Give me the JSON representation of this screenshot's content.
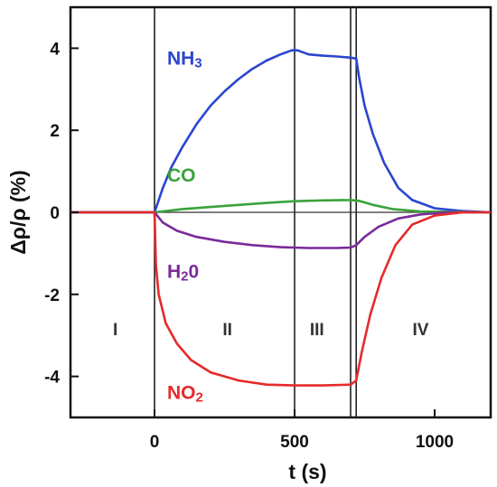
{
  "chart_data": {
    "type": "line",
    "xlabel": "t (s)",
    "ylabel": "Δρ/ρ (%)",
    "xlim": [
      -300,
      1200
    ],
    "ylim": [
      -5,
      5
    ],
    "x_ticks": [
      0,
      500,
      1000
    ],
    "y_ticks": [
      -4,
      -2,
      0,
      2,
      4
    ],
    "grid": false,
    "legend": "inline labels",
    "phase_boundaries": [
      0,
      500,
      700,
      720
    ],
    "regions": [
      {
        "label": "I",
        "x": -140
      },
      {
        "label": "II",
        "x": 260
      },
      {
        "label": "III",
        "x": 580
      },
      {
        "label": "IV",
        "x": 950
      }
    ],
    "series": [
      {
        "name": "NH3",
        "label_main": "NH",
        "label_sub": "3",
        "color": "#2a45d0",
        "label_at": [
          45,
          3.6
        ],
        "points": [
          [
            -300,
            0
          ],
          [
            0,
            0
          ],
          [
            30,
            0.6
          ],
          [
            60,
            1.1
          ],
          [
            100,
            1.6
          ],
          [
            150,
            2.15
          ],
          [
            200,
            2.6
          ],
          [
            250,
            2.95
          ],
          [
            300,
            3.25
          ],
          [
            350,
            3.5
          ],
          [
            400,
            3.7
          ],
          [
            450,
            3.85
          ],
          [
            490,
            3.95
          ],
          [
            510,
            3.95
          ],
          [
            550,
            3.85
          ],
          [
            600,
            3.82
          ],
          [
            650,
            3.8
          ],
          [
            700,
            3.77
          ],
          [
            720,
            3.75
          ],
          [
            730,
            3.3
          ],
          [
            750,
            2.6
          ],
          [
            780,
            1.9
          ],
          [
            820,
            1.2
          ],
          [
            870,
            0.6
          ],
          [
            920,
            0.3
          ],
          [
            1000,
            0.1
          ],
          [
            1100,
            0.03
          ],
          [
            1200,
            0
          ]
        ]
      },
      {
        "name": "CO",
        "label_main": "CO",
        "label_sub": "",
        "color": "#3aa23a",
        "label_at": [
          45,
          0.75
        ],
        "points": [
          [
            -300,
            0
          ],
          [
            0,
            0
          ],
          [
            100,
            0.08
          ],
          [
            200,
            0.13
          ],
          [
            300,
            0.18
          ],
          [
            400,
            0.23
          ],
          [
            500,
            0.27
          ],
          [
            600,
            0.29
          ],
          [
            700,
            0.3
          ],
          [
            730,
            0.28
          ],
          [
            780,
            0.18
          ],
          [
            850,
            0.08
          ],
          [
            950,
            0.02
          ],
          [
            1200,
            0
          ]
        ]
      },
      {
        "name": "H20",
        "label_main": "H",
        "label_sub": "2",
        "label_tail": "0",
        "color": "#7a2a9a",
        "label_at": [
          45,
          -1.6
        ],
        "points": [
          [
            -300,
            0
          ],
          [
            0,
            0
          ],
          [
            30,
            -0.25
          ],
          [
            80,
            -0.45
          ],
          [
            150,
            -0.6
          ],
          [
            250,
            -0.72
          ],
          [
            350,
            -0.8
          ],
          [
            450,
            -0.85
          ],
          [
            550,
            -0.87
          ],
          [
            650,
            -0.87
          ],
          [
            700,
            -0.86
          ],
          [
            720,
            -0.8
          ],
          [
            750,
            -0.6
          ],
          [
            800,
            -0.35
          ],
          [
            870,
            -0.15
          ],
          [
            950,
            -0.05
          ],
          [
            1050,
            0
          ],
          [
            1200,
            0
          ]
        ]
      },
      {
        "name": "NO2",
        "label_main": "NO",
        "label_sub": "2",
        "color": "#e52a2a",
        "label_at": [
          45,
          -4.55
        ],
        "points": [
          [
            -300,
            0
          ],
          [
            0,
            0
          ],
          [
            5,
            -1.3
          ],
          [
            15,
            -2.0
          ],
          [
            40,
            -2.7
          ],
          [
            80,
            -3.2
          ],
          [
            130,
            -3.6
          ],
          [
            200,
            -3.9
          ],
          [
            300,
            -4.1
          ],
          [
            400,
            -4.2
          ],
          [
            500,
            -4.22
          ],
          [
            600,
            -4.22
          ],
          [
            700,
            -4.2
          ],
          [
            720,
            -4.1
          ],
          [
            740,
            -3.4
          ],
          [
            770,
            -2.5
          ],
          [
            810,
            -1.6
          ],
          [
            860,
            -0.8
          ],
          [
            920,
            -0.3
          ],
          [
            1000,
            -0.08
          ],
          [
            1100,
            0
          ],
          [
            1200,
            0
          ]
        ]
      }
    ]
  }
}
